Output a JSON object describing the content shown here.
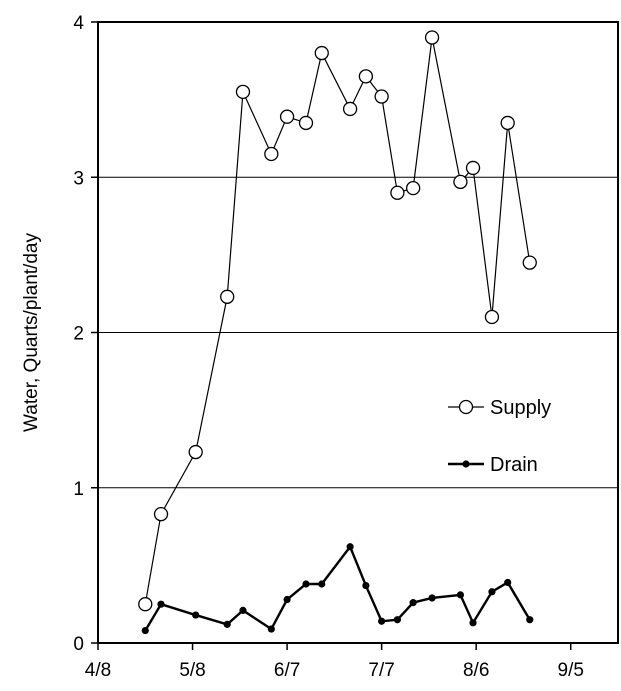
{
  "chart_data": {
    "type": "line",
    "title": "",
    "xlabel": "",
    "ylabel": "Water, Quarts/plant/day",
    "x_tick_labels": [
      "4/8",
      "5/8",
      "6/7",
      "7/7",
      "8/6",
      "9/5"
    ],
    "x_tick_dates": [
      "2000-04-08",
      "2000-05-08",
      "2000-06-07",
      "2000-07-07",
      "2000-08-06",
      "2000-09-05"
    ],
    "xlim": [
      "2000-04-08",
      "2000-09-20"
    ],
    "y_tick_labels": [
      "0",
      "1",
      "2",
      "3",
      "4"
    ],
    "ylim": [
      0,
      4
    ],
    "grid": "horizontal",
    "legend_position": "right-middle",
    "x": [
      "2000-04-23",
      "2000-04-28",
      "2000-05-09",
      "2000-05-19",
      "2000-05-24",
      "2000-06-02",
      "2000-06-07",
      "2000-06-13",
      "2000-06-18",
      "2000-06-27",
      "2000-07-02",
      "2000-07-07",
      "2000-07-12",
      "2000-07-17",
      "2000-07-23",
      "2000-08-01",
      "2000-08-05",
      "2000-08-11",
      "2000-08-16",
      "2000-08-23",
      "2000-08-30",
      "2000-09-06"
    ],
    "series": [
      {
        "name": "Supply",
        "marker": "open-circle",
        "color": "#000000",
        "values": [
          0.25,
          0.83,
          1.23,
          2.23,
          3.55,
          3.15,
          3.39,
          3.35,
          3.8,
          3.44,
          3.65,
          3.52,
          2.9,
          2.93,
          3.9,
          2.97,
          3.06,
          2.1,
          3.35,
          2.45,
          null,
          null
        ]
      },
      {
        "name": "Drain",
        "marker": "filled-dot",
        "color": "#000000",
        "values": [
          0.08,
          0.25,
          0.18,
          0.12,
          0.21,
          0.09,
          0.28,
          0.38,
          0.38,
          0.62,
          0.37,
          0.14,
          0.15,
          0.26,
          0.29,
          0.31,
          0.13,
          0.33,
          0.39,
          0.15,
          null,
          null
        ]
      }
    ]
  }
}
